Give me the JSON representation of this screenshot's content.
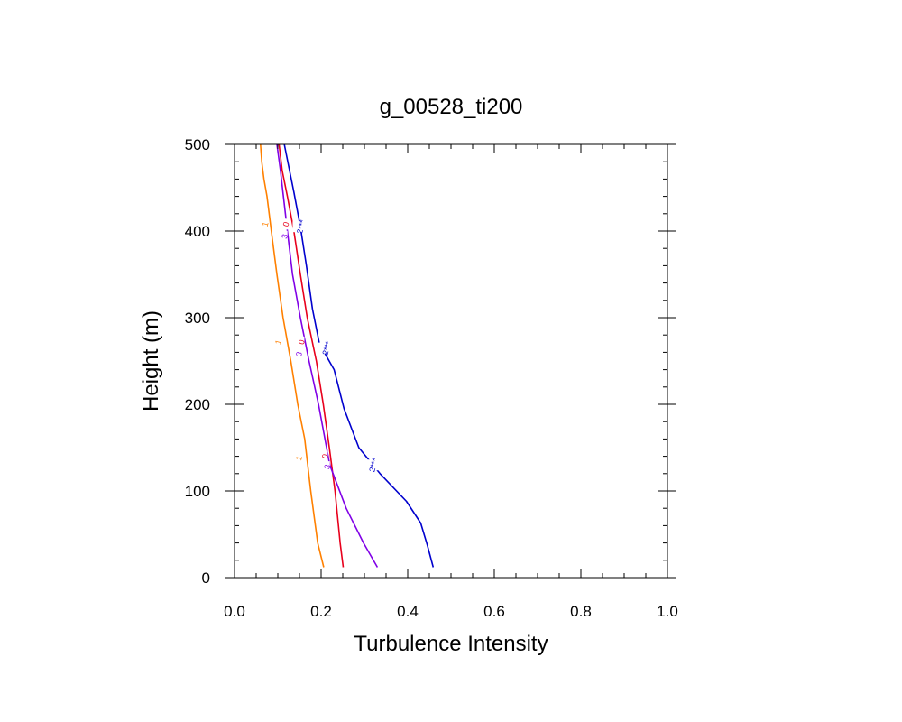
{
  "chart_data": {
    "type": "line",
    "title": "g_00528_ti200",
    "xlabel": "Turbulence Intensity",
    "ylabel": "Height (m)",
    "xlim": [
      0,
      1
    ],
    "ylim": [
      0,
      500
    ],
    "xticks": [
      0.0,
      0.2,
      0.4,
      0.6,
      0.8,
      1.0
    ],
    "xtick_labels": [
      "0.0",
      "0.2",
      "0.4",
      "0.6",
      "0.8",
      "1.0"
    ],
    "yticks": [
      0,
      100,
      200,
      300,
      400,
      500
    ],
    "ytick_labels": [
      "0",
      "100",
      "200",
      "300",
      "400",
      "500"
    ],
    "grid": false,
    "legend": "none",
    "series": [
      {
        "label": "1",
        "color": "#ff8000",
        "x": [
          0.206,
          0.192,
          0.176,
          0.162,
          0.146,
          0.13,
          0.112,
          0.098,
          0.085,
          0.075,
          0.068,
          0.063,
          0.06
        ],
        "y": [
          12,
          40,
          100,
          160,
          200,
          250,
          300,
          350,
          400,
          440,
          460,
          480,
          500
        ]
      },
      {
        "label": "0",
        "color": "#e8001c",
        "x": [
          0.251,
          0.244,
          0.232,
          0.219,
          0.205,
          0.189,
          0.168,
          0.152,
          0.137,
          0.122,
          0.11,
          0.103
        ],
        "y": [
          12,
          40,
          100,
          150,
          200,
          250,
          300,
          350,
          400,
          440,
          470,
          500
        ]
      },
      {
        "label": "3",
        "color": "#8000e6",
        "x": [
          0.33,
          0.298,
          0.258,
          0.22,
          0.194,
          0.172,
          0.152,
          0.134,
          0.122,
          0.113,
          0.106,
          0.098
        ],
        "y": [
          12,
          40,
          80,
          130,
          200,
          250,
          300,
          350,
          400,
          440,
          470,
          500
        ]
      },
      {
        "label": "2***",
        "color": "#0000cd",
        "x": [
          0.459,
          0.445,
          0.43,
          0.397,
          0.336,
          0.287,
          0.253,
          0.23,
          0.196,
          0.18,
          0.166,
          0.152,
          0.137,
          0.125,
          0.115
        ],
        "y": [
          12,
          38,
          63,
          88,
          120,
          150,
          195,
          240,
          270,
          310,
          360,
          405,
          445,
          475,
          500
        ]
      }
    ],
    "line_labels": [
      {
        "series": 0,
        "text": "1",
        "x": 0.07,
        "y": 408
      },
      {
        "series": 0,
        "text": "1",
        "x": 0.1,
        "y": 272
      },
      {
        "series": 0,
        "text": "1",
        "x": 0.148,
        "y": 138
      },
      {
        "series": 1,
        "text": "0",
        "x": 0.118,
        "y": 408
      },
      {
        "series": 1,
        "text": "0",
        "x": 0.154,
        "y": 272
      },
      {
        "series": 1,
        "text": "0",
        "x": 0.208,
        "y": 140
      },
      {
        "series": 2,
        "text": "3",
        "x": 0.115,
        "y": 394
      },
      {
        "series": 2,
        "text": "3",
        "x": 0.148,
        "y": 258
      },
      {
        "series": 2,
        "text": "3",
        "x": 0.213,
        "y": 128
      },
      {
        "series": 3,
        "text": "2***",
        "x": 0.153,
        "y": 405
      },
      {
        "series": 3,
        "text": "2***",
        "x": 0.212,
        "y": 265
      },
      {
        "series": 3,
        "text": "2***",
        "x": 0.32,
        "y": 130
      }
    ]
  }
}
